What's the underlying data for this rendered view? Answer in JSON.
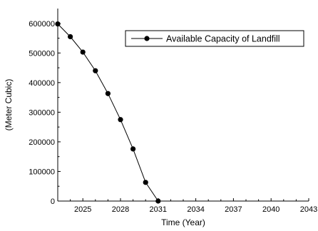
{
  "chart_data": {
    "type": "line",
    "xlabel": "Time (Year)",
    "ylabel": "(Meter Cubic)",
    "xlim": [
      2023,
      2043
    ],
    "ylim": [
      0,
      650000
    ],
    "x_ticks": [
      2025,
      2028,
      2031,
      2034,
      2037,
      2040,
      2043
    ],
    "y_ticks": [
      0,
      100000,
      200000,
      300000,
      400000,
      500000,
      600000
    ],
    "legend_position": "top-right",
    "grid": false,
    "series": [
      {
        "name": "Available Capacity of Landfill",
        "color": "#000000",
        "marker": "circle",
        "x": [
          2023,
          2024,
          2025,
          2026,
          2027,
          2028,
          2029,
          2030,
          2031
        ],
        "y": [
          598000,
          555000,
          503000,
          440000,
          363000,
          275000,
          176000,
          63000,
          0
        ]
      }
    ]
  }
}
